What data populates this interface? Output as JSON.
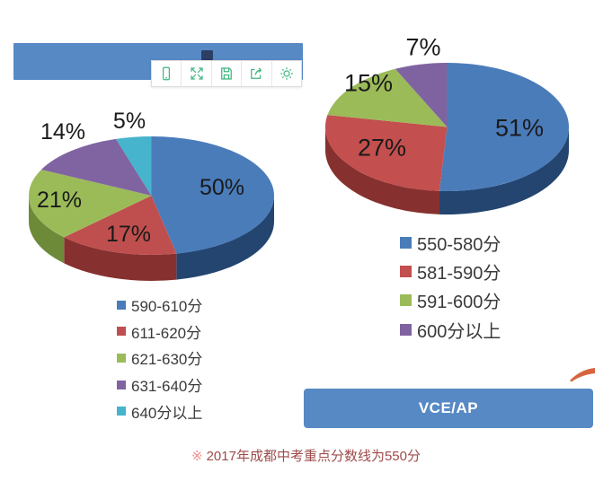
{
  "header_bar": {
    "color": "#5789c5"
  },
  "toolbar": {
    "background": "#ffffff",
    "icon_color": "#3cb57e",
    "buttons": [
      {
        "name": "mobile-preview-icon"
      },
      {
        "name": "fullscreen-icon"
      },
      {
        "name": "save-icon"
      },
      {
        "name": "share-icon"
      },
      {
        "name": "settings-icon"
      }
    ]
  },
  "chart_data": [
    {
      "type": "pie",
      "style": "3d",
      "title": "",
      "labels": [
        "590-610分",
        "611-620分",
        "621-630分",
        "631-640分",
        "640分以上"
      ],
      "values": [
        50,
        17,
        21,
        14,
        5
      ],
      "value_labels": [
        "50%",
        "17%",
        "21%",
        "14%",
        "5%"
      ],
      "colors": [
        "#4a7cba",
        "#bf4f4e",
        "#9bbb59",
        "#8064a2",
        "#45b4cc"
      ],
      "side_colors": [
        "#234570",
        "#86312f",
        "#6d8a39",
        "#5c477a",
        "#2f87a0"
      ],
      "legend_position": "bottom"
    },
    {
      "type": "pie",
      "style": "3d",
      "title": "",
      "labels": [
        "550-580分",
        "581-590分",
        "591-600分",
        "600分以上"
      ],
      "values": [
        51,
        27,
        15,
        7
      ],
      "value_labels": [
        "51%",
        "27%",
        "15%",
        "7%"
      ],
      "colors": [
        "#4a7cba",
        "#c34f4e",
        "#9bbb59",
        "#7f63a1"
      ],
      "side_colors": [
        "#234570",
        "#86312f",
        "#6d8a39",
        "#5c477a"
      ],
      "legend_position": "bottom"
    }
  ],
  "button": {
    "label": "VCE/AP",
    "color": "#5789c5"
  },
  "footnote": {
    "marker": "※",
    "text": "2017年成都中考重点分数线为550分",
    "marker_color": "#ec8d8d",
    "text_color": "#9e4b4b"
  },
  "percent_label_color": "#1a1a1a",
  "legend_text_color": "#3a3a3a",
  "swoosh_color": "#d8643f"
}
